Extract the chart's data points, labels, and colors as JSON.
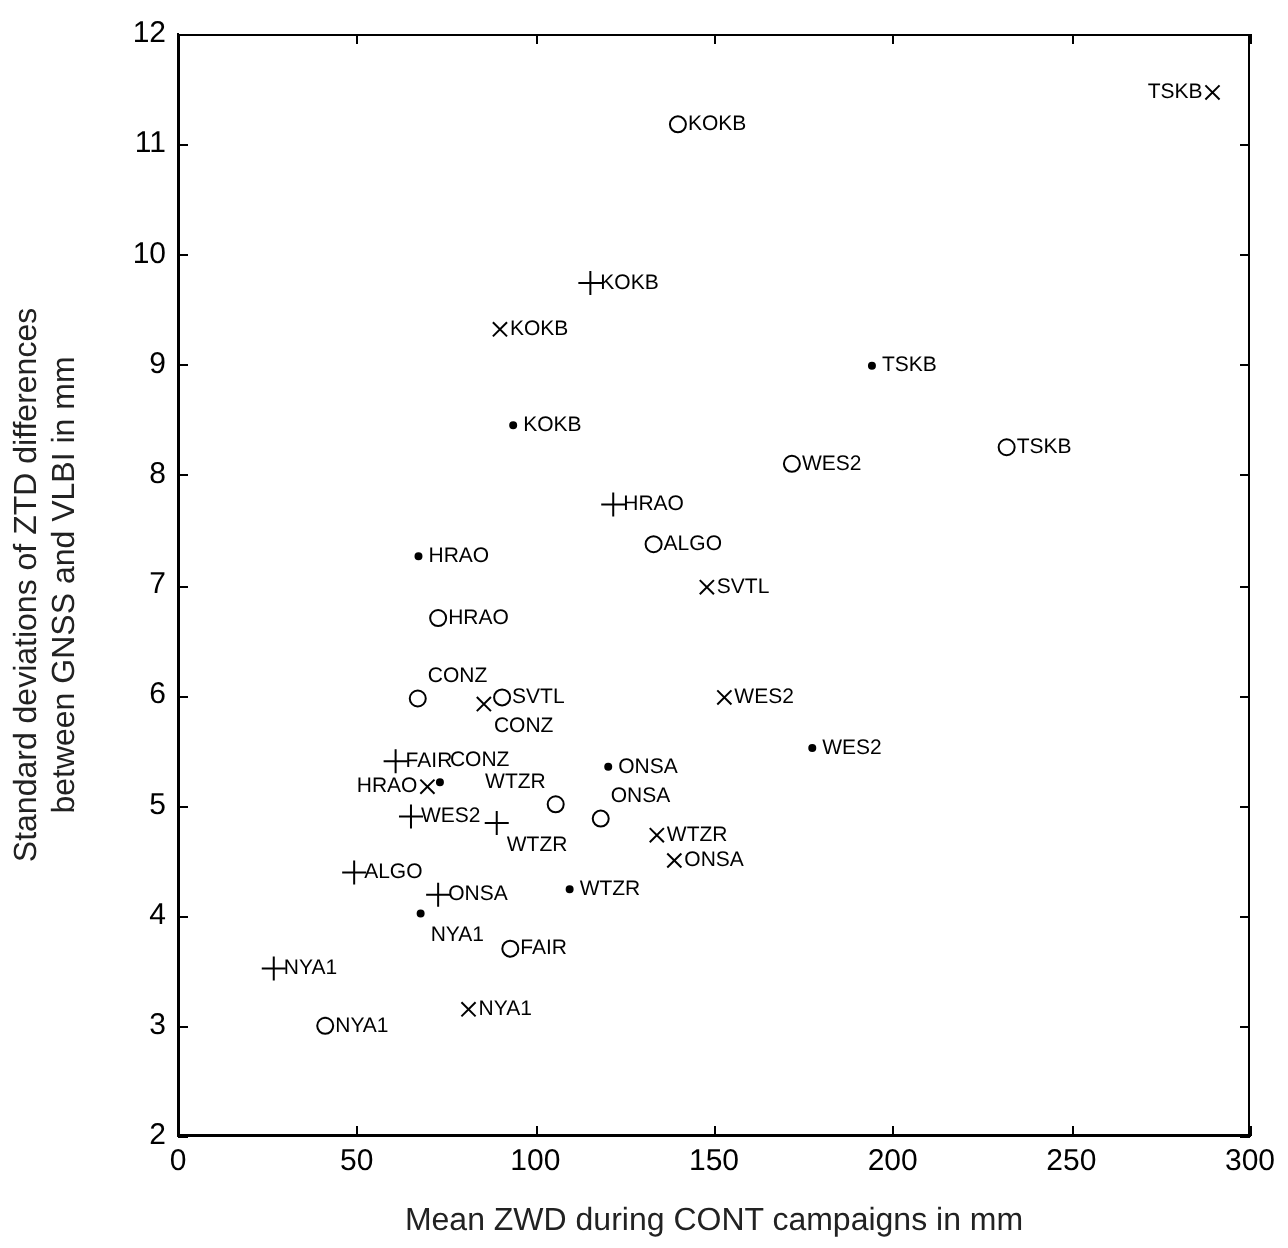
{
  "chart_data": {
    "type": "scatter",
    "xlabel": "Mean ZWD during CONT campaigns in mm",
    "ylabel": "Standard deviations of ZTD differences\nbetween GNSS and VLBI in mm",
    "xlim": [
      0,
      300
    ],
    "xticks": [
      0,
      50,
      100,
      150,
      200,
      250,
      300
    ],
    "ylim": [
      2,
      12
    ],
    "yticks": [
      2,
      3,
      4,
      5,
      6,
      7,
      8,
      9,
      10,
      11,
      12
    ],
    "grid": false,
    "legend": false,
    "series": [
      {
        "marker": "circle",
        "color": "#000000",
        "x": [
          139.9,
          231.9,
          171.8,
          133.1,
          72.8,
          67.1,
          90.7,
          105.7,
          118.3,
          93.0,
          41.2
        ],
        "values": [
          11.18,
          8.25,
          8.1,
          7.37,
          6.7,
          5.97,
          5.98,
          5.01,
          4.88,
          3.7,
          3.0
        ]
      },
      {
        "marker": "plus",
        "color": "#000000",
        "x": [
          115.4,
          121.8,
          60.9,
          65.2,
          89.2,
          49.3,
          26.8,
          72.8
        ],
        "values": [
          9.74,
          7.73,
          5.4,
          4.9,
          4.84,
          4.39,
          3.52,
          4.19
        ]
      },
      {
        "marker": "cross",
        "color": "#000000",
        "x": [
          289.5,
          90.1,
          148.0,
          85.6,
          69.8,
          152.9,
          134.0,
          138.9,
          81.3
        ],
        "values": [
          11.47,
          9.32,
          6.98,
          5.92,
          5.17,
          5.98,
          4.73,
          4.5,
          3.15
        ]
      },
      {
        "marker": "dot",
        "color": "#000000",
        "x": [
          194.2,
          93.8,
          67.3,
          73.3,
          120.4,
          177.5,
          109.6,
          67.9
        ],
        "values": [
          8.99,
          8.45,
          7.26,
          5.21,
          5.35,
          5.52,
          4.24,
          4.02
        ]
      }
    ],
    "annotations": [
      {
        "text": "KOKB",
        "x": 139.9,
        "y": 11.18
      },
      {
        "text": "TSKB",
        "x": 231.9,
        "y": 8.25
      },
      {
        "text": "WES2",
        "x": 171.8,
        "y": 8.1
      },
      {
        "text": "ALGO",
        "x": 133.1,
        "y": 7.37
      },
      {
        "text": "HRAO",
        "x": 72.8,
        "y": 6.7
      },
      {
        "text": "CONZ",
        "x": 67.1,
        "y": 5.97
      },
      {
        "text": "SVTL",
        "x": 90.7,
        "y": 5.98
      },
      {
        "text": "WTZR",
        "x": 105.7,
        "y": 5.01
      },
      {
        "text": "ONSA",
        "x": 118.3,
        "y": 4.88
      },
      {
        "text": "FAIR",
        "x": 93.0,
        "y": 3.7
      },
      {
        "text": "NYA1",
        "x": 41.2,
        "y": 3.0
      },
      {
        "text": "KOKB",
        "x": 115.4,
        "y": 9.74
      },
      {
        "text": "HRAO",
        "x": 121.8,
        "y": 7.73
      },
      {
        "text": "FAIR",
        "x": 60.9,
        "y": 5.4
      },
      {
        "text": "WES2",
        "x": 65.2,
        "y": 4.9
      },
      {
        "text": "WTZR",
        "x": 89.2,
        "y": 4.84
      },
      {
        "text": "ALGO",
        "x": 49.3,
        "y": 4.39
      },
      {
        "text": "NYA1",
        "x": 26.8,
        "y": 3.52
      },
      {
        "text": "ONSA",
        "x": 72.8,
        "y": 4.19
      },
      {
        "text": "TSKB",
        "x": 289.5,
        "y": 11.47
      },
      {
        "text": "KOKB",
        "x": 90.1,
        "y": 9.32
      },
      {
        "text": "SVTL",
        "x": 148.0,
        "y": 6.98
      },
      {
        "text": "CONZ",
        "x": 85.6,
        "y": 5.92
      },
      {
        "text": "HRAO",
        "x": 69.8,
        "y": 5.17
      },
      {
        "text": "WES2",
        "x": 152.9,
        "y": 5.98
      },
      {
        "text": "WTZR",
        "x": 134.0,
        "y": 4.73
      },
      {
        "text": "ONSA",
        "x": 138.9,
        "y": 4.5
      },
      {
        "text": "NYA1",
        "x": 81.3,
        "y": 3.15
      },
      {
        "text": "TSKB",
        "x": 194.2,
        "y": 8.99
      },
      {
        "text": "KOKB",
        "x": 93.8,
        "y": 8.45
      },
      {
        "text": "HRAO",
        "x": 67.3,
        "y": 7.26
      },
      {
        "text": "CONZ",
        "x": 73.3,
        "y": 5.21
      },
      {
        "text": "ONSA",
        "x": 120.4,
        "y": 5.35
      },
      {
        "text": "WES2",
        "x": 177.5,
        "y": 5.52
      },
      {
        "text": "WTZR",
        "x": 109.6,
        "y": 4.24
      },
      {
        "text": "NYA1",
        "x": 67.9,
        "y": 4.02
      }
    ]
  }
}
